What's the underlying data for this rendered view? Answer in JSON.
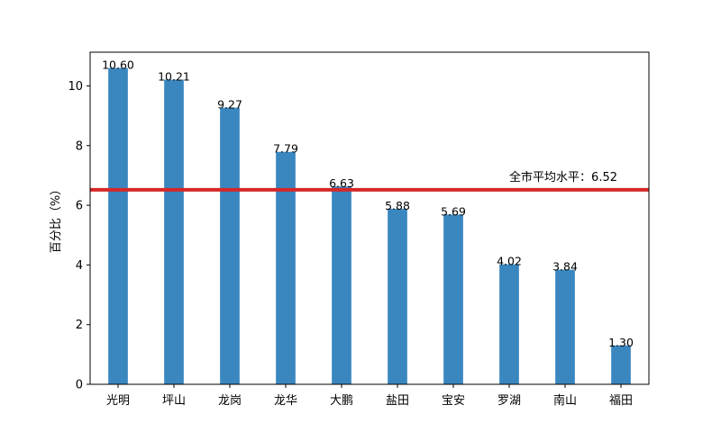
{
  "chart_data": {
    "type": "bar",
    "categories": [
      "光明",
      "坪山",
      "龙岗",
      "龙华",
      "大鹏",
      "盐田",
      "宝安",
      "罗湖",
      "南山",
      "福田"
    ],
    "values": [
      10.6,
      10.21,
      9.27,
      7.79,
      6.63,
      5.88,
      5.69,
      4.02,
      3.84,
      1.3
    ],
    "value_labels": [
      "10.60",
      "10.21",
      "9.27",
      "7.79",
      "6.63",
      "5.88",
      "5.69",
      "4.02",
      "3.84",
      "1.30"
    ],
    "ylabel": "百分比（%）",
    "ylim": [
      0,
      11.13
    ],
    "yticks": [
      0,
      2,
      4,
      6,
      8,
      10
    ],
    "ytick_labels": [
      "0",
      "2",
      "4",
      "6",
      "8",
      "10"
    ],
    "reference_line": {
      "value": 6.52,
      "label": "全市平均水平：6.52",
      "color": "#d62728"
    },
    "bar_color": "#3a87c0",
    "grid": false,
    "legend": "none"
  }
}
